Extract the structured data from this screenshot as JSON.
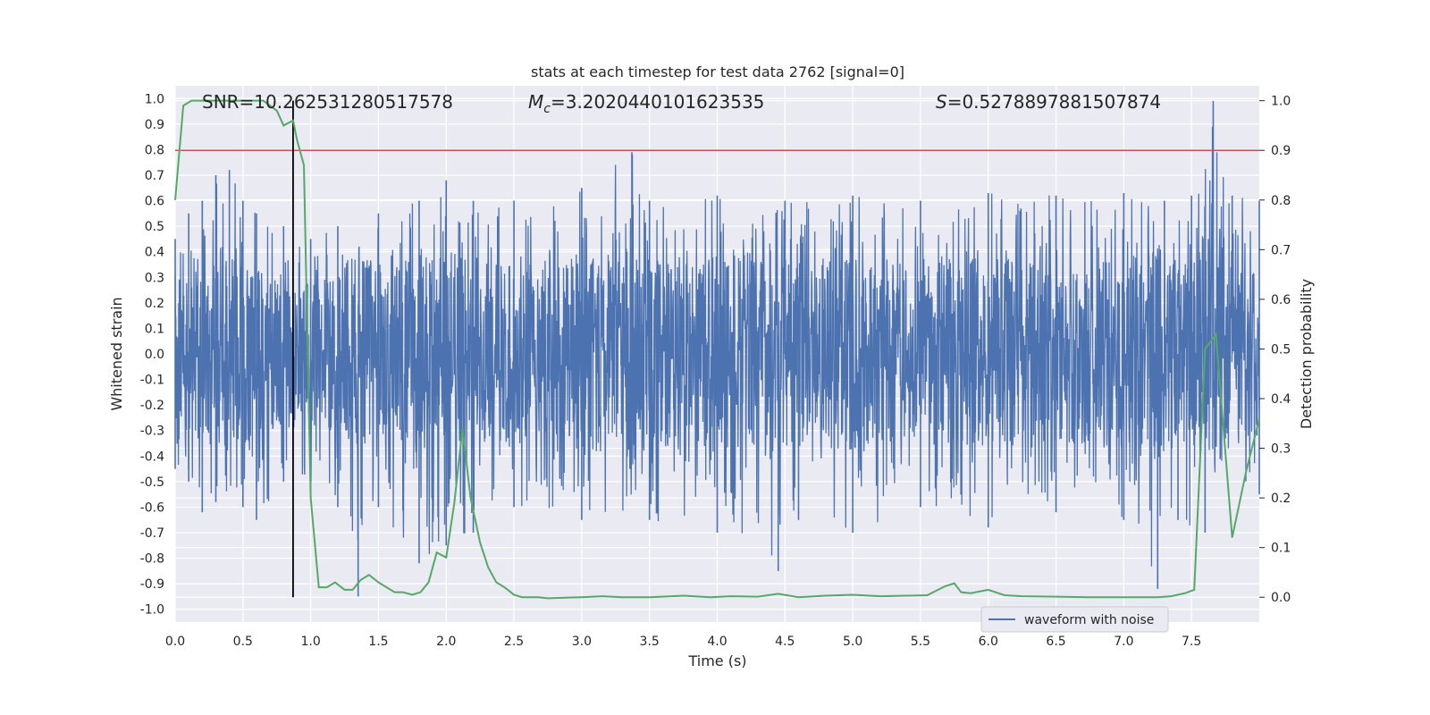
{
  "chart_data": {
    "type": "line",
    "title": "stats at each timestep for test data 2762 [signal=0]",
    "xlabel": "Time (s)",
    "ylabel_left": "Whitened strain",
    "ylabel_right": "Detection probability",
    "xlim": [
      0,
      8
    ],
    "ylim_left": [
      -1.05,
      1.05
    ],
    "ylim_right": [
      -0.05,
      1.03
    ],
    "x_ticks": [
      "0.0",
      "0.5",
      "1.0",
      "1.5",
      "2.0",
      "2.5",
      "3.0",
      "3.5",
      "4.0",
      "4.5",
      "5.0",
      "5.5",
      "6.0",
      "6.5",
      "7.0",
      "7.5"
    ],
    "y_ticks_left": [
      "1.0",
      "0.9",
      "0.8",
      "0.7",
      "0.6",
      "0.5",
      "0.4",
      "0.3",
      "0.2",
      "0.1",
      "0.0",
      "-0.1",
      "-0.2",
      "-0.3",
      "-0.4",
      "-0.5",
      "-0.6",
      "-0.7",
      "-0.8",
      "-0.9",
      "-1.0"
    ],
    "y_ticks_right": [
      "1.0",
      "0.9",
      "0.8",
      "0.7",
      "0.6",
      "0.5",
      "0.4",
      "0.3",
      "0.2",
      "0.1",
      "0.0"
    ],
    "grid": true,
    "legend_position": "lower-right",
    "annotations": {
      "snr": "SNR=10.262531280517578",
      "mc": "=3.2020440101623535",
      "s": "=0.5278897881507874"
    },
    "threshold": {
      "value_right": 0.9,
      "color": "#c44e52"
    },
    "marker_time": 0.87,
    "series": [
      {
        "name": "waveform with noise",
        "axis": "left",
        "color": "#4c72b0",
        "envelope_upper": [
          [
            0,
            0.45
          ],
          [
            0.1,
            0.55
          ],
          [
            0.2,
            0.6
          ],
          [
            0.3,
            0.7
          ],
          [
            0.4,
            0.72
          ],
          [
            0.5,
            0.6
          ],
          [
            0.6,
            0.55
          ],
          [
            0.8,
            0.5
          ],
          [
            1.0,
            0.45
          ],
          [
            1.2,
            0.5
          ],
          [
            1.5,
            0.55
          ],
          [
            1.8,
            0.6
          ],
          [
            2.0,
            0.68
          ],
          [
            2.2,
            0.6
          ],
          [
            2.5,
            0.6
          ],
          [
            3.0,
            0.65
          ],
          [
            3.37,
            0.79
          ],
          [
            3.5,
            0.6
          ],
          [
            4.0,
            0.62
          ],
          [
            4.5,
            0.6
          ],
          [
            5.0,
            0.62
          ],
          [
            5.5,
            0.6
          ],
          [
            6.0,
            0.63
          ],
          [
            6.5,
            0.62
          ],
          [
            7.0,
            0.63
          ],
          [
            7.3,
            0.6
          ],
          [
            7.5,
            0.62
          ],
          [
            7.66,
            0.99
          ],
          [
            7.8,
            0.62
          ],
          [
            8.0,
            0.6
          ]
        ],
        "envelope_lower": [
          [
            0,
            -0.45
          ],
          [
            0.1,
            -0.5
          ],
          [
            0.2,
            -0.62
          ],
          [
            0.3,
            -0.58
          ],
          [
            0.5,
            -0.6
          ],
          [
            0.6,
            -0.65
          ],
          [
            0.8,
            -0.5
          ],
          [
            1.0,
            -0.55
          ],
          [
            1.2,
            -0.6
          ],
          [
            1.35,
            -0.95
          ],
          [
            1.5,
            -0.6
          ],
          [
            1.8,
            -0.82
          ],
          [
            2.0,
            -0.75
          ],
          [
            2.2,
            -0.7
          ],
          [
            2.5,
            -0.6
          ],
          [
            3.0,
            -0.65
          ],
          [
            3.5,
            -0.65
          ],
          [
            4.0,
            -0.7
          ],
          [
            4.45,
            -0.85
          ],
          [
            4.6,
            -0.65
          ],
          [
            5.0,
            -0.7
          ],
          [
            5.5,
            -0.6
          ],
          [
            6.0,
            -0.68
          ],
          [
            6.5,
            -0.62
          ],
          [
            7.0,
            -0.65
          ],
          [
            7.25,
            -0.92
          ],
          [
            7.4,
            -0.65
          ],
          [
            7.6,
            -0.7
          ],
          [
            8.0,
            -0.55
          ]
        ]
      },
      {
        "name": "detection probability",
        "axis": "right",
        "color": "#55a868",
        "x": [
          0.0,
          0.06,
          0.12,
          0.2,
          0.3,
          0.4,
          0.5,
          0.6,
          0.65,
          0.7,
          0.75,
          0.8,
          0.87,
          0.9,
          0.95,
          1.0,
          1.06,
          1.12,
          1.18,
          1.25,
          1.31,
          1.37,
          1.43,
          1.5,
          1.56,
          1.62,
          1.68,
          1.75,
          1.81,
          1.87,
          1.93,
          2.0,
          2.06,
          2.12,
          2.18,
          2.25,
          2.31,
          2.37,
          2.43,
          2.5,
          2.56,
          2.62,
          2.68,
          2.75,
          3.0,
          3.15,
          3.3,
          3.5,
          3.75,
          3.95,
          4.1,
          4.3,
          4.45,
          4.6,
          4.8,
          5.0,
          5.2,
          5.4,
          5.55,
          5.68,
          5.75,
          5.8,
          5.87,
          6.0,
          6.12,
          6.25,
          6.5,
          6.75,
          7.0,
          7.25,
          7.35,
          7.45,
          7.52,
          7.6,
          7.68,
          7.8,
          7.9,
          8.0
        ],
        "y": [
          0.8,
          0.99,
          1.0,
          1.0,
          1.0,
          1.0,
          1.0,
          1.0,
          1.0,
          0.99,
          0.98,
          0.95,
          0.96,
          0.92,
          0.87,
          0.2,
          0.02,
          0.02,
          0.03,
          0.015,
          0.015,
          0.035,
          0.045,
          0.03,
          0.02,
          0.01,
          0.01,
          0.005,
          0.01,
          0.03,
          0.09,
          0.08,
          0.19,
          0.34,
          0.2,
          0.11,
          0.06,
          0.03,
          0.02,
          0.005,
          0.0,
          0.0,
          0.0,
          -0.002,
          0.0,
          0.002,
          0.0,
          0.0,
          0.003,
          0.0,
          0.002,
          0.001,
          0.007,
          0.0,
          0.003,
          0.005,
          0.002,
          0.003,
          0.004,
          0.022,
          0.028,
          0.01,
          0.008,
          0.015,
          0.004,
          0.002,
          0.001,
          0.0,
          0.0,
          0.0,
          0.002,
          0.008,
          0.015,
          0.5,
          0.53,
          0.12,
          0.25,
          0.36
        ]
      }
    ]
  }
}
